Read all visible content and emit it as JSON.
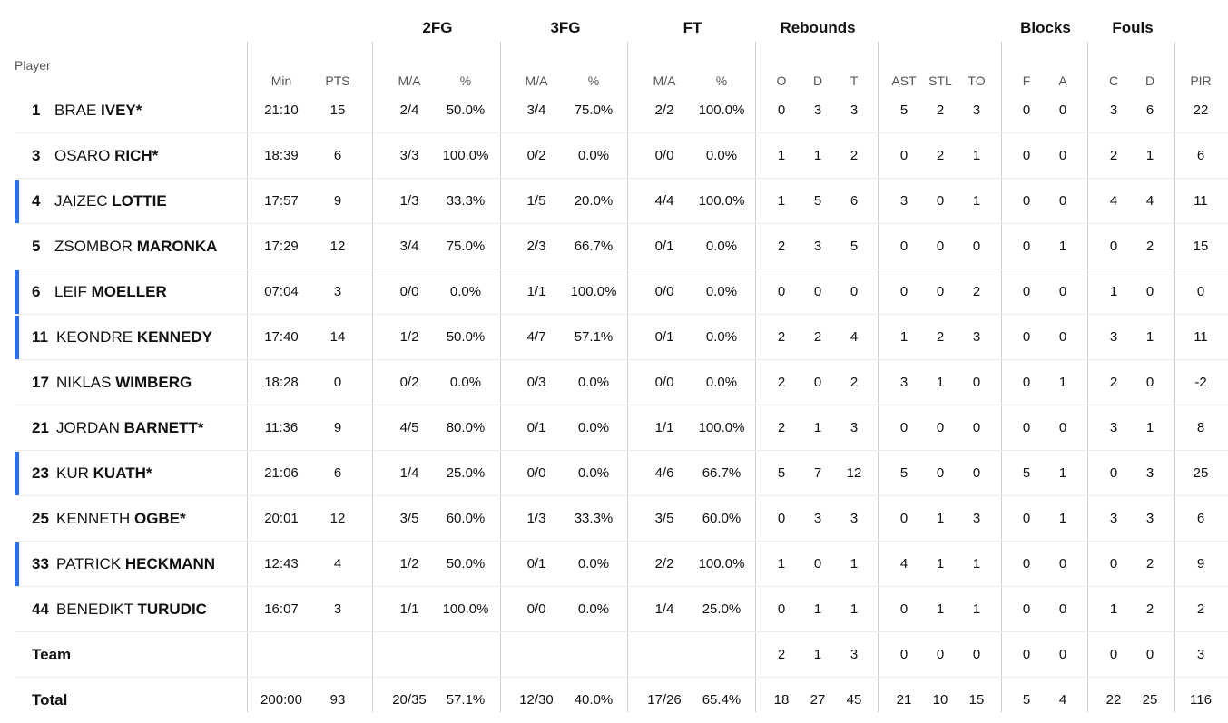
{
  "accent_color": "#2b6ff0",
  "header": {
    "player_label": "Player",
    "groups": [
      "2FG",
      "3FG",
      "FT",
      "Rebounds",
      "Blocks",
      "Fouls"
    ],
    "subcolumns": [
      "Min",
      "PTS",
      "M/A",
      "%",
      "M/A",
      "%",
      "M/A",
      "%",
      "O",
      "D",
      "T",
      "AST",
      "STL",
      "TO",
      "F",
      "A",
      "C",
      "D",
      "PIR"
    ]
  },
  "players": [
    {
      "number": "1",
      "first": "BRAE",
      "last": "IVEY*",
      "on_court": false,
      "stats": [
        "21:10",
        "15",
        "2/4",
        "50.0%",
        "3/4",
        "75.0%",
        "2/2",
        "100.0%",
        "0",
        "3",
        "3",
        "5",
        "2",
        "3",
        "0",
        "0",
        "3",
        "6",
        "22"
      ]
    },
    {
      "number": "3",
      "first": "OSARO",
      "last": "RICH*",
      "on_court": false,
      "stats": [
        "18:39",
        "6",
        "3/3",
        "100.0%",
        "0/2",
        "0.0%",
        "0/0",
        "0.0%",
        "1",
        "1",
        "2",
        "0",
        "2",
        "1",
        "0",
        "0",
        "2",
        "1",
        "6"
      ]
    },
    {
      "number": "4",
      "first": "JAIZEC",
      "last": "LOTTIE",
      "on_court": true,
      "stats": [
        "17:57",
        "9",
        "1/3",
        "33.3%",
        "1/5",
        "20.0%",
        "4/4",
        "100.0%",
        "1",
        "5",
        "6",
        "3",
        "0",
        "1",
        "0",
        "0",
        "4",
        "4",
        "11"
      ]
    },
    {
      "number": "5",
      "first": "ZSOMBOR",
      "last": "MARONKA",
      "on_court": false,
      "stats": [
        "17:29",
        "12",
        "3/4",
        "75.0%",
        "2/3",
        "66.7%",
        "0/1",
        "0.0%",
        "2",
        "3",
        "5",
        "0",
        "0",
        "0",
        "0",
        "1",
        "0",
        "2",
        "15"
      ]
    },
    {
      "number": "6",
      "first": "LEIF",
      "last": "MOELLER",
      "on_court": true,
      "stats": [
        "07:04",
        "3",
        "0/0",
        "0.0%",
        "1/1",
        "100.0%",
        "0/0",
        "0.0%",
        "0",
        "0",
        "0",
        "0",
        "0",
        "2",
        "0",
        "0",
        "1",
        "0",
        "0"
      ]
    },
    {
      "number": "11",
      "first": "KEONDRE",
      "last": "KENNEDY",
      "on_court": true,
      "stats": [
        "17:40",
        "14",
        "1/2",
        "50.0%",
        "4/7",
        "57.1%",
        "0/1",
        "0.0%",
        "2",
        "2",
        "4",
        "1",
        "2",
        "3",
        "0",
        "0",
        "3",
        "1",
        "11"
      ]
    },
    {
      "number": "17",
      "first": "NIKLAS",
      "last": "WIMBERG",
      "on_court": false,
      "stats": [
        "18:28",
        "0",
        "0/2",
        "0.0%",
        "0/3",
        "0.0%",
        "0/0",
        "0.0%",
        "2",
        "0",
        "2",
        "3",
        "1",
        "0",
        "0",
        "1",
        "2",
        "0",
        "-2"
      ]
    },
    {
      "number": "21",
      "first": "JORDAN",
      "last": "BARNETT*",
      "on_court": false,
      "stats": [
        "11:36",
        "9",
        "4/5",
        "80.0%",
        "0/1",
        "0.0%",
        "1/1",
        "100.0%",
        "2",
        "1",
        "3",
        "0",
        "0",
        "0",
        "0",
        "0",
        "3",
        "1",
        "8"
      ]
    },
    {
      "number": "23",
      "first": "KUR",
      "last": "KUATH*",
      "on_court": true,
      "stats": [
        "21:06",
        "6",
        "1/4",
        "25.0%",
        "0/0",
        "0.0%",
        "4/6",
        "66.7%",
        "5",
        "7",
        "12",
        "5",
        "0",
        "0",
        "5",
        "1",
        "0",
        "3",
        "25"
      ]
    },
    {
      "number": "25",
      "first": "KENNETH",
      "last": "OGBE*",
      "on_court": false,
      "stats": [
        "20:01",
        "12",
        "3/5",
        "60.0%",
        "1/3",
        "33.3%",
        "3/5",
        "60.0%",
        "0",
        "3",
        "3",
        "0",
        "1",
        "3",
        "0",
        "1",
        "3",
        "3",
        "6"
      ]
    },
    {
      "number": "33",
      "first": "PATRICK",
      "last": "HECKMANN",
      "on_court": true,
      "stats": [
        "12:43",
        "4",
        "1/2",
        "50.0%",
        "0/1",
        "0.0%",
        "2/2",
        "100.0%",
        "1",
        "0",
        "1",
        "4",
        "1",
        "1",
        "0",
        "0",
        "0",
        "2",
        "9"
      ]
    },
    {
      "number": "44",
      "first": "BENEDIKT",
      "last": "TURUDIC",
      "on_court": false,
      "stats": [
        "16:07",
        "3",
        "1/1",
        "100.0%",
        "0/0",
        "0.0%",
        "1/4",
        "25.0%",
        "0",
        "1",
        "1",
        "0",
        "1",
        "1",
        "0",
        "0",
        "1",
        "2",
        "2"
      ]
    }
  ],
  "team_row": {
    "label": "Team",
    "stats": [
      "",
      "",
      "",
      "",
      "",
      "",
      "",
      "",
      "2",
      "1",
      "3",
      "0",
      "0",
      "0",
      "0",
      "0",
      "0",
      "0",
      "3"
    ]
  },
  "total_row": {
    "label": "Total",
    "stats": [
      "200:00",
      "93",
      "20/35",
      "57.1%",
      "12/30",
      "40.0%",
      "17/26",
      "65.4%",
      "18",
      "27",
      "45",
      "21",
      "10",
      "15",
      "5",
      "4",
      "22",
      "25",
      "116"
    ]
  }
}
